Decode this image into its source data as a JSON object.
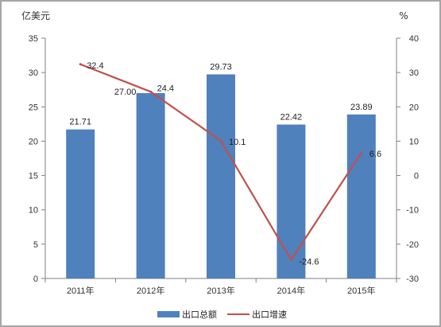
{
  "chart_data": {
    "type": "bar",
    "categories": [
      "2011年",
      "2012年",
      "2013年",
      "2014年",
      "2015年"
    ],
    "series": [
      {
        "name": "出口总额",
        "type": "bar",
        "axis": "left",
        "color": "#4f81bd",
        "values": [
          21.71,
          27.0,
          29.73,
          22.42,
          23.89
        ],
        "labels": [
          "21.71",
          "27.00",
          "29.73",
          "22.42",
          "23.89"
        ]
      },
      {
        "name": "出口增速",
        "type": "line",
        "axis": "right",
        "color": "#c0504d",
        "values": [
          32.4,
          24.4,
          10.1,
          -24.6,
          6.6
        ],
        "labels": [
          "32.4",
          "24.4",
          "10.1",
          "-24.6",
          "6.6"
        ]
      }
    ],
    "y_left": {
      "unit": "亿美元",
      "ylim": [
        0,
        35
      ],
      "ticks": [
        "0",
        "5",
        "10",
        "15",
        "20",
        "25",
        "30",
        "35"
      ]
    },
    "y_right": {
      "unit": "%",
      "ylim": [
        -30,
        40
      ],
      "ticks": [
        "-30",
        "-20",
        "-10",
        "0",
        "10",
        "20",
        "30",
        "40"
      ]
    },
    "grid": false,
    "legend_position": "bottom"
  }
}
